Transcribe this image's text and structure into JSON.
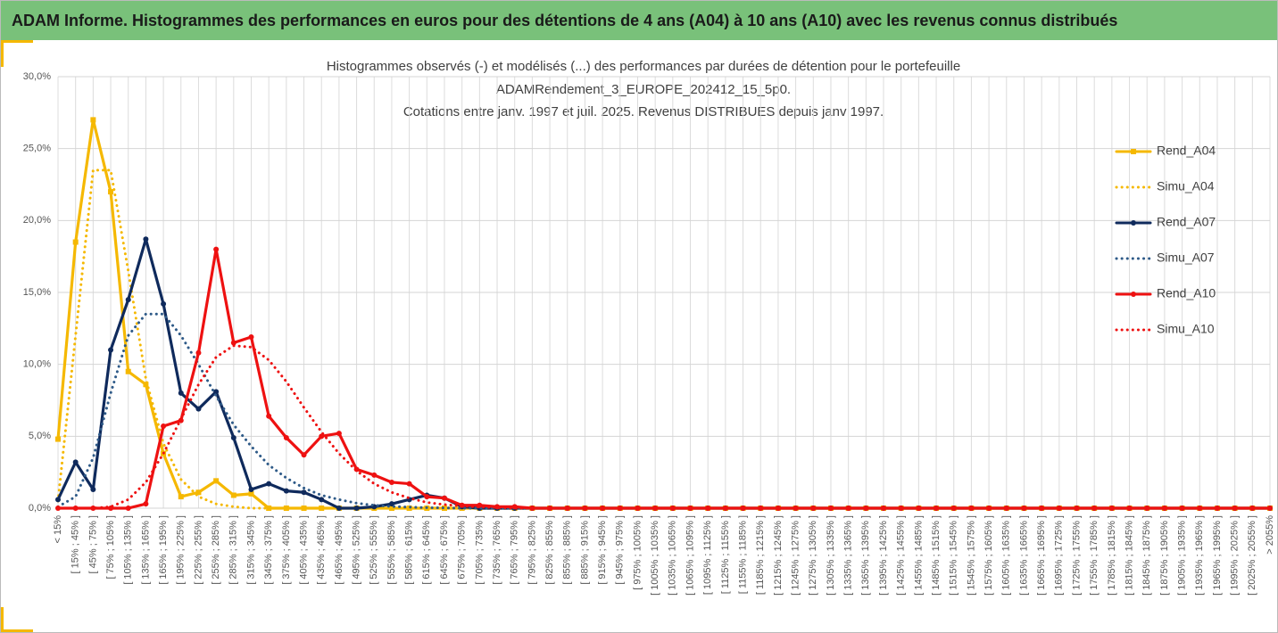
{
  "header": {
    "title": "ADAM Informe. Histogrammes des performances en euros pour des détentions de 4 ans (A04) à 10 ans (A10) avec les revenus connus distribués"
  },
  "chart_data": {
    "type": "line",
    "title": [
      "Histogrammes observés (-) et modélisés (...) des performances par durées de détention pour le portefeuille",
      "ADAMRendement_3_EUROPE_202412_15_5p0.",
      "Cotations entre janv. 1997 et juil. 2025. Revenus DISTRIBUES depuis janv 1997."
    ],
    "categories": [
      "< 15%",
      "[ 15% ; 45% ]",
      "[ 45% ; 75% ]",
      "[ 75% ; 105% ]",
      "[ 105% ; 135% ]",
      "[ 135% ; 165% ]",
      "[ 165% ; 195% ]",
      "[ 195% ; 225% ]",
      "[ 225% ; 255% ]",
      "[ 255% ; 285% ]",
      "[ 285% ; 315% ]",
      "[ 315% ; 345% ]",
      "[ 345% ; 375% ]",
      "[ 375% ; 405% ]",
      "[ 405% ; 435% ]",
      "[ 435% ; 465% ]",
      "[ 465% ; 495% ]",
      "[ 495% ; 525% ]",
      "[ 525% ; 555% ]",
      "[ 555% ; 585% ]",
      "[ 585% ; 615% ]",
      "[ 615% ; 645% ]",
      "[ 645% ; 675% ]",
      "[ 675% ; 705% ]",
      "[ 705% ; 735% ]",
      "[ 735% ; 765% ]",
      "[ 765% ; 795% ]",
      "[ 795% ; 825% ]",
      "[ 825% ; 855% ]",
      "[ 855% ; 885% ]",
      "[ 885% ; 915% ]",
      "[ 915% ; 945% ]",
      "[ 945% ; 975% ]",
      "[ 975% ; 1005% ]",
      "[ 1005% ; 1035% ]",
      "[ 1035% ; 1065% ]",
      "[ 1065% ; 1095% ]",
      "[ 1095% ; 1125% ]",
      "[ 1125% ; 1155% ]",
      "[ 1155% ; 1185% ]",
      "[ 1185% ; 1215% ]",
      "[ 1215% ; 1245% ]",
      "[ 1245% ; 1275% ]",
      "[ 1275% ; 1305% ]",
      "[ 1305% ; 1335% ]",
      "[ 1335% ; 1365% ]",
      "[ 1365% ; 1395% ]",
      "[ 1395% ; 1425% ]",
      "[ 1425% ; 1455% ]",
      "[ 1455% ; 1485% ]",
      "[ 1485% ; 1515% ]",
      "[ 1515% ; 1545% ]",
      "[ 1545% ; 1575% ]",
      "[ 1575% ; 1605% ]",
      "[ 1605% ; 1635% ]",
      "[ 1635% ; 1665% ]",
      "[ 1665% ; 1695% ]",
      "[ 1695% ; 1725% ]",
      "[ 1725% ; 1755% ]",
      "[ 1755% ; 1785% ]",
      "[ 1785% ; 1815% ]",
      "[ 1815% ; 1845% ]",
      "[ 1845% ; 1875% ]",
      "[ 1875% ; 1905% ]",
      "[ 1905% ; 1935% ]",
      "[ 1935% ; 1965% ]",
      "[ 1965% ; 1995% ]",
      "[ 1995% ; 2025% ]",
      "[ 2025% ; 2055% ]",
      "> 2055%"
    ],
    "series": [
      {
        "name": "Rend_A04",
        "color": "#f5b800",
        "line_style": "solid",
        "marker": "square",
        "values": [
          4.8,
          18.5,
          27.0,
          22.0,
          9.5,
          8.6,
          3.8,
          0.8,
          1.1,
          1.9,
          0.9,
          1.0,
          0,
          0,
          0,
          0,
          0,
          0,
          0,
          0,
          0,
          0,
          0,
          0,
          0,
          0,
          0,
          0,
          0,
          0,
          0,
          0,
          0,
          0,
          0,
          0,
          0,
          0,
          0,
          0,
          0,
          0,
          0,
          0,
          0,
          0,
          0,
          0,
          0,
          0,
          0,
          0,
          0,
          0,
          0,
          0,
          0,
          0,
          0,
          0,
          0,
          0,
          0,
          0,
          0,
          0,
          0,
          0,
          0,
          0
        ]
      },
      {
        "name": "Simu_A04",
        "color": "#f5b800",
        "line_style": "dotted",
        "marker": "none",
        "values": [
          0.5,
          12,
          23.5,
          23.5,
          16.5,
          9,
          4.5,
          2,
          0.8,
          0.3,
          0.1,
          0,
          0,
          0,
          0,
          0,
          0,
          0,
          0,
          0,
          0,
          0,
          0,
          0,
          0,
          0,
          0,
          0,
          0,
          0,
          0,
          0,
          0,
          0,
          0,
          0,
          0,
          0,
          0,
          0,
          0,
          0,
          0,
          0,
          0,
          0,
          0,
          0,
          0,
          0,
          0,
          0,
          0,
          0,
          0,
          0,
          0,
          0,
          0,
          0,
          0,
          0,
          0,
          0,
          0,
          0,
          0,
          0,
          0,
          0
        ]
      },
      {
        "name": "Rend_A07",
        "color": "#0f2a5c",
        "line_style": "solid",
        "marker": "circle",
        "values": [
          0.6,
          3.2,
          1.3,
          11.0,
          14.5,
          18.7,
          14.2,
          8.0,
          6.9,
          8.1,
          4.9,
          1.3,
          1.7,
          1.2,
          1.1,
          0.6,
          0,
          0,
          0.1,
          0.3,
          0.6,
          0.9,
          0.7,
          0.1,
          0,
          0,
          0,
          0,
          0,
          0,
          0,
          0,
          0,
          0,
          0,
          0,
          0,
          0,
          0,
          0,
          0,
          0,
          0,
          0,
          0,
          0,
          0,
          0,
          0,
          0,
          0,
          0,
          0,
          0,
          0,
          0,
          0,
          0,
          0,
          0,
          0,
          0,
          0,
          0,
          0,
          0,
          0,
          0,
          0,
          0
        ]
      },
      {
        "name": "Simu_A07",
        "color": "#2e5a88",
        "line_style": "dotted",
        "marker": "none",
        "values": [
          0.1,
          0.8,
          3.5,
          8,
          12,
          13.5,
          13.5,
          12,
          10,
          7.8,
          5.8,
          4.3,
          3.0,
          2.1,
          1.4,
          0.9,
          0.6,
          0.35,
          0.2,
          0.12,
          0.07,
          0.04,
          0.02,
          0,
          0,
          0,
          0,
          0,
          0,
          0,
          0,
          0,
          0,
          0,
          0,
          0,
          0,
          0,
          0,
          0,
          0,
          0,
          0,
          0,
          0,
          0,
          0,
          0,
          0,
          0,
          0,
          0,
          0,
          0,
          0,
          0,
          0,
          0,
          0,
          0,
          0,
          0,
          0,
          0,
          0,
          0,
          0,
          0,
          0,
          0
        ]
      },
      {
        "name": "Rend_A10",
        "color": "#ee1111",
        "line_style": "solid",
        "marker": "circle",
        "values": [
          0,
          0,
          0,
          0,
          0,
          0.3,
          5.7,
          6.1,
          10.8,
          18.0,
          11.5,
          11.9,
          6.4,
          4.9,
          3.7,
          5.0,
          5.2,
          2.7,
          2.3,
          1.8,
          1.7,
          0.8,
          0.7,
          0.2,
          0.2,
          0.1,
          0.1,
          0,
          0,
          0,
          0,
          0,
          0,
          0,
          0,
          0,
          0,
          0,
          0,
          0,
          0,
          0,
          0,
          0,
          0,
          0,
          0,
          0,
          0,
          0,
          0,
          0,
          0,
          0,
          0,
          0,
          0,
          0,
          0,
          0,
          0,
          0,
          0,
          0,
          0,
          0,
          0,
          0,
          0,
          0
        ]
      },
      {
        "name": "Simu_A10",
        "color": "#ee1111",
        "line_style": "dotted",
        "marker": "none",
        "values": [
          0,
          0,
          0,
          0.1,
          0.6,
          1.8,
          3.8,
          6.2,
          8.6,
          10.5,
          11.3,
          11.2,
          10.3,
          8.8,
          7.0,
          5.3,
          3.8,
          2.6,
          1.7,
          1.1,
          0.7,
          0.4,
          0.25,
          0.15,
          0.08,
          0.05,
          0,
          0,
          0,
          0,
          0,
          0,
          0,
          0,
          0,
          0,
          0,
          0,
          0,
          0,
          0,
          0,
          0,
          0,
          0,
          0,
          0,
          0,
          0,
          0,
          0,
          0,
          0,
          0,
          0,
          0,
          0,
          0,
          0,
          0,
          0,
          0,
          0,
          0,
          0,
          0,
          0,
          0,
          0,
          0
        ]
      }
    ],
    "ylim": [
      0,
      30
    ],
    "yticks": [
      {
        "value": 0,
        "label": "0,0%"
      },
      {
        "value": 5,
        "label": "5,0%"
      },
      {
        "value": 10,
        "label": "10,0%"
      },
      {
        "value": 15,
        "label": "15,0%"
      },
      {
        "value": 20,
        "label": "20,0%"
      },
      {
        "value": 25,
        "label": "25,0%"
      },
      {
        "value": 30,
        "label": "30,0%"
      }
    ],
    "grid": true,
    "legend": "right"
  }
}
